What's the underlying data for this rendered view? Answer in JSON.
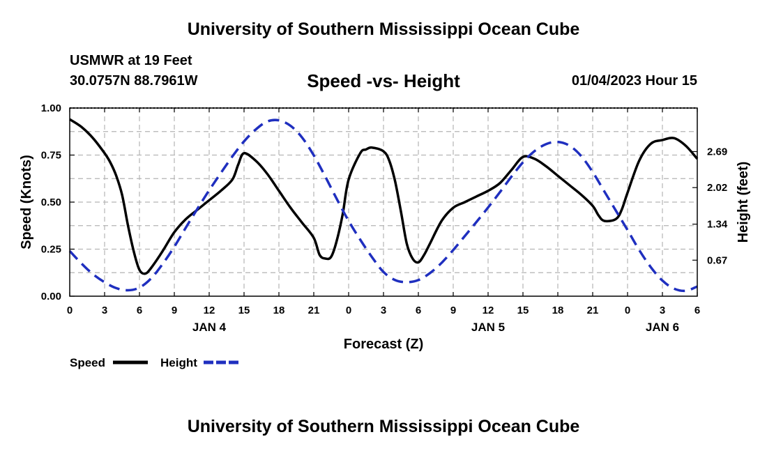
{
  "header": {
    "title": "University of Southern Mississippi Ocean Cube",
    "station": "USMWR at 19 Feet",
    "coordinates": "30.0757N  88.7961W",
    "subtitle": "Speed -vs- Height",
    "timestamp": "01/04/2023 Hour 15"
  },
  "footer": {
    "title": "University of Southern Mississippi Ocean Cube"
  },
  "colors": {
    "speed": "#000000",
    "height": "#1f2fbf",
    "grid": "#b4b4b4"
  },
  "chart_data": {
    "type": "line",
    "title": "Speed -vs- Height",
    "xlabel": "Forecast (Z)",
    "ylabel": "Speed (Knots)",
    "y2label": "Height (feet)",
    "xlim": [
      0,
      54
    ],
    "ylim": [
      0,
      1
    ],
    "y2lim": [
      0,
      3.5
    ],
    "x_ticks": [
      0,
      3,
      6,
      9,
      12,
      15,
      18,
      21,
      24,
      27,
      30,
      33,
      36,
      39,
      42,
      45,
      48,
      51,
      54
    ],
    "x_tick_labels": [
      "0",
      "3",
      "6",
      "9",
      "12",
      "15",
      "18",
      "21",
      "0",
      "3",
      "6",
      "9",
      "12",
      "15",
      "18",
      "21",
      "0",
      "3",
      "6"
    ],
    "day_labels": [
      {
        "label": "JAN 4",
        "x": 12
      },
      {
        "label": "JAN 5",
        "x": 36
      },
      {
        "label": "JAN 6",
        "x": 51
      }
    ],
    "y_ticks": [
      0,
      0.25,
      0.5,
      0.75,
      1.0
    ],
    "y_tick_labels": [
      "0.00",
      "0.25",
      "0.50",
      "0.75",
      "1.00"
    ],
    "y2_ticks": [
      0.67,
      1.34,
      2.02,
      2.69
    ],
    "y2_tick_labels": [
      "0.67",
      "1.34",
      "2.02",
      "2.69"
    ],
    "legend": [
      {
        "name": "Speed",
        "style": "solid"
      },
      {
        "name": "Height",
        "style": "dashed"
      }
    ],
    "series": [
      {
        "name": "Speed",
        "axis": "left",
        "style": "solid",
        "x": [
          0,
          1,
          2,
          3,
          3.5,
          4,
          4.5,
          5,
          5.5,
          6,
          6.5,
          7,
          8,
          9,
          10,
          11,
          12,
          13,
          14,
          14.5,
          15,
          16,
          17,
          18,
          19,
          20,
          21,
          21.5,
          22,
          22.5,
          23,
          23.5,
          24,
          25,
          25.5,
          26,
          27,
          27.5,
          28,
          28.5,
          29,
          29.5,
          30,
          30.5,
          31,
          32,
          33,
          34,
          35,
          36,
          37,
          38,
          39,
          40,
          41,
          42,
          43,
          44,
          45,
          45.5,
          46,
          47,
          47.5,
          48,
          49,
          50,
          51,
          52,
          53,
          54
        ],
        "values": [
          0.94,
          0.9,
          0.84,
          0.76,
          0.71,
          0.64,
          0.54,
          0.38,
          0.24,
          0.14,
          0.12,
          0.15,
          0.24,
          0.34,
          0.41,
          0.46,
          0.51,
          0.56,
          0.62,
          0.7,
          0.76,
          0.72,
          0.65,
          0.56,
          0.47,
          0.39,
          0.31,
          0.22,
          0.2,
          0.21,
          0.3,
          0.44,
          0.62,
          0.76,
          0.78,
          0.79,
          0.77,
          0.72,
          0.61,
          0.45,
          0.28,
          0.2,
          0.18,
          0.22,
          0.28,
          0.4,
          0.47,
          0.5,
          0.53,
          0.56,
          0.6,
          0.67,
          0.74,
          0.73,
          0.69,
          0.64,
          0.59,
          0.54,
          0.48,
          0.43,
          0.4,
          0.41,
          0.46,
          0.55,
          0.72,
          0.81,
          0.83,
          0.84,
          0.8,
          0.73
        ]
      },
      {
        "name": "Height",
        "axis": "right",
        "style": "dashed",
        "x": [
          0,
          1,
          2,
          3,
          4,
          5,
          6,
          7,
          8,
          9,
          10,
          11,
          12,
          13,
          14,
          15,
          16,
          17,
          18,
          19,
          20,
          21,
          22,
          23,
          24,
          25,
          26,
          27,
          28,
          29,
          30,
          31,
          32,
          33,
          34,
          35,
          36,
          37,
          38,
          39,
          40,
          41,
          42,
          43,
          44,
          45,
          46,
          47,
          48,
          49,
          50,
          51,
          52,
          53,
          54
        ],
        "values": [
          0.84,
          0.61,
          0.41,
          0.26,
          0.15,
          0.11,
          0.16,
          0.33,
          0.6,
          0.92,
          1.28,
          1.63,
          1.97,
          2.29,
          2.6,
          2.88,
          3.1,
          3.25,
          3.27,
          3.17,
          2.95,
          2.62,
          2.22,
          1.8,
          1.4,
          1.05,
          0.73,
          0.45,
          0.3,
          0.26,
          0.3,
          0.43,
          0.62,
          0.86,
          1.12,
          1.38,
          1.65,
          1.93,
          2.22,
          2.49,
          2.7,
          2.83,
          2.87,
          2.8,
          2.61,
          2.31,
          1.95,
          1.59,
          1.23,
          0.86,
          0.54,
          0.29,
          0.14,
          0.1,
          0.18
        ]
      }
    ]
  }
}
